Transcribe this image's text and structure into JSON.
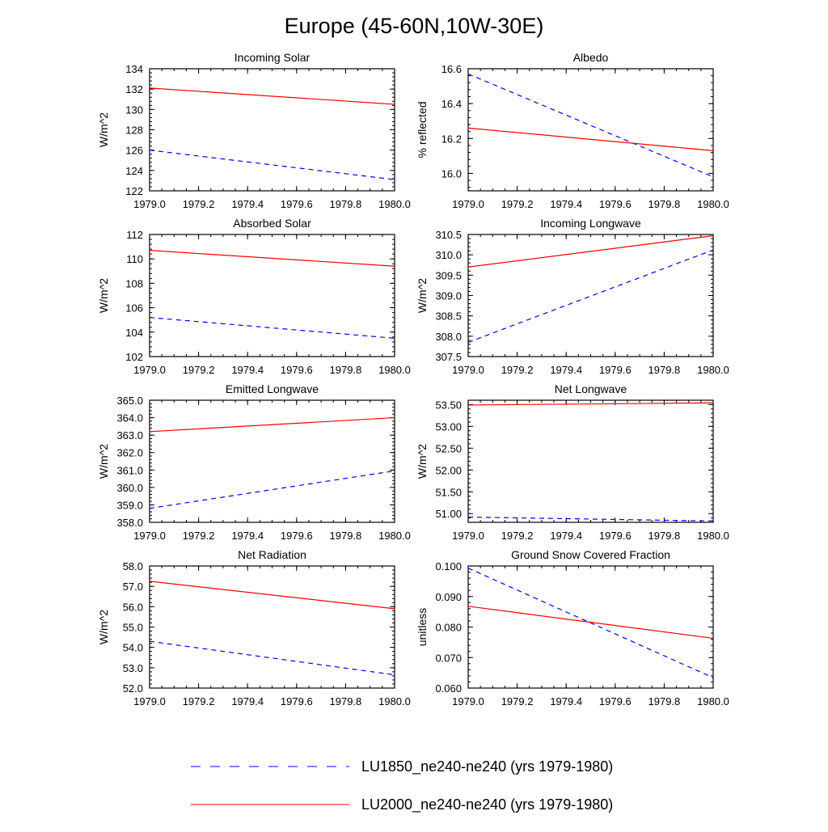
{
  "figure_title": "Europe (45-60N,10W-30E)",
  "colors": {
    "lu1850": "#0000ff",
    "lu2000": "#ff0000"
  },
  "chart_data": [
    {
      "type": "line",
      "title": "Incoming Solar",
      "ylabel": "W/m^2",
      "xlim": [
        1979.0,
        1980.0
      ],
      "xticks": [
        "1979.0",
        "1979.2",
        "1979.4",
        "1979.6",
        "1979.8",
        "1980.0"
      ],
      "ylim": [
        122,
        134
      ],
      "yticks": [
        "122",
        "124",
        "126",
        "128",
        "130",
        "132",
        "134"
      ],
      "x": [
        1979.0,
        1980.0
      ],
      "series": [
        {
          "name": "LU1850_ne240-ne240 (yrs 1979-1980)",
          "values": [
            126.0,
            123.1
          ]
        },
        {
          "name": "LU2000_ne240-ne240 (yrs 1979-1980)",
          "values": [
            132.1,
            130.5
          ]
        }
      ]
    },
    {
      "type": "line",
      "title": "Albedo",
      "ylabel": "% reflected",
      "xlim": [
        1979.0,
        1980.0
      ],
      "xticks": [
        "1979.0",
        "1979.2",
        "1979.4",
        "1979.6",
        "1979.8",
        "1980.0"
      ],
      "ylim": [
        15.9,
        16.6
      ],
      "yticks": [
        "16.0",
        "16.2",
        "16.4",
        "16.6"
      ],
      "x": [
        1979.0,
        1980.0
      ],
      "series": [
        {
          "name": "LU1850_ne240-ne240 (yrs 1979-1980)",
          "values": [
            16.57,
            15.98
          ]
        },
        {
          "name": "LU2000_ne240-ne240 (yrs 1979-1980)",
          "values": [
            16.26,
            16.13
          ]
        }
      ]
    },
    {
      "type": "line",
      "title": "Absorbed Solar",
      "ylabel": "W/m^2",
      "xlim": [
        1979.0,
        1980.0
      ],
      "xticks": [
        "1979.0",
        "1979.2",
        "1979.4",
        "1979.6",
        "1979.8",
        "1980.0"
      ],
      "ylim": [
        102,
        112
      ],
      "yticks": [
        "102",
        "104",
        "106",
        "108",
        "110",
        "112"
      ],
      "x": [
        1979.0,
        1980.0
      ],
      "series": [
        {
          "name": "LU1850_ne240-ne240 (yrs 1979-1980)",
          "values": [
            105.2,
            103.5
          ]
        },
        {
          "name": "LU2000_ne240-ne240 (yrs 1979-1980)",
          "values": [
            110.7,
            109.4
          ]
        }
      ]
    },
    {
      "type": "line",
      "title": "Incoming Longwave",
      "ylabel": "W/m^2",
      "xlim": [
        1979.0,
        1980.0
      ],
      "xticks": [
        "1979.0",
        "1979.2",
        "1979.4",
        "1979.6",
        "1979.8",
        "1980.0"
      ],
      "ylim": [
        307.5,
        310.5
      ],
      "yticks": [
        "307.5",
        "308.0",
        "308.5",
        "309.0",
        "309.5",
        "310.0",
        "310.5"
      ],
      "x": [
        1979.0,
        1980.0
      ],
      "series": [
        {
          "name": "LU1850_ne240-ne240 (yrs 1979-1980)",
          "values": [
            307.85,
            310.12
          ]
        },
        {
          "name": "LU2000_ne240-ne240 (yrs 1979-1980)",
          "values": [
            309.7,
            310.47
          ]
        }
      ]
    },
    {
      "type": "line",
      "title": "Emitted Longwave",
      "ylabel": "W/m^2",
      "xlim": [
        1979.0,
        1980.0
      ],
      "xticks": [
        "1979.0",
        "1979.2",
        "1979.4",
        "1979.6",
        "1979.8",
        "1980.0"
      ],
      "ylim": [
        358.0,
        365.0
      ],
      "yticks": [
        "358.0",
        "359.0",
        "360.0",
        "361.0",
        "362.0",
        "363.0",
        "364.0",
        "365.0"
      ],
      "x": [
        1979.0,
        1980.0
      ],
      "series": [
        {
          "name": "LU1850_ne240-ne240 (yrs 1979-1980)",
          "values": [
            358.8,
            360.95
          ]
        },
        {
          "name": "LU2000_ne240-ne240 (yrs 1979-1980)",
          "values": [
            363.2,
            364.0
          ]
        }
      ]
    },
    {
      "type": "line",
      "title": "Net Longwave",
      "ylabel": "W/m^2",
      "xlim": [
        1979.0,
        1980.0
      ],
      "xticks": [
        "1979.0",
        "1979.2",
        "1979.4",
        "1979.6",
        "1979.8",
        "1980.0"
      ],
      "ylim": [
        50.8,
        53.6
      ],
      "yticks": [
        "51.00",
        "51.50",
        "52.00",
        "52.50",
        "53.00",
        "53.50"
      ],
      "x": [
        1979.0,
        1980.0
      ],
      "series": [
        {
          "name": "LU1850_ne240-ne240 (yrs 1979-1980)",
          "values": [
            50.92,
            50.83
          ]
        },
        {
          "name": "LU2000_ne240-ne240 (yrs 1979-1980)",
          "values": [
            53.49,
            53.54
          ]
        }
      ]
    },
    {
      "type": "line",
      "title": "Net Radiation",
      "ylabel": "W/m^2",
      "xlim": [
        1979.0,
        1980.0
      ],
      "xticks": [
        "1979.0",
        "1979.2",
        "1979.4",
        "1979.6",
        "1979.8",
        "1980.0"
      ],
      "ylim": [
        52.0,
        58.0
      ],
      "yticks": [
        "52.0",
        "53.0",
        "54.0",
        "55.0",
        "56.0",
        "57.0",
        "58.0"
      ],
      "x": [
        1979.0,
        1980.0
      ],
      "series": [
        {
          "name": "LU1850_ne240-ne240 (yrs 1979-1980)",
          "values": [
            54.3,
            52.65
          ]
        },
        {
          "name": "LU2000_ne240-ne240 (yrs 1979-1980)",
          "values": [
            57.25,
            55.9
          ]
        }
      ]
    },
    {
      "type": "line",
      "title": "Ground Snow Covered Fraction",
      "ylabel": "unitless",
      "xlim": [
        1979.0,
        1980.0
      ],
      "xticks": [
        "1979.0",
        "1979.2",
        "1979.4",
        "1979.6",
        "1979.8",
        "1980.0"
      ],
      "ylim": [
        0.06,
        0.1
      ],
      "yticks": [
        "0.060",
        "0.070",
        "0.080",
        "0.090",
        "0.100"
      ],
      "x": [
        1979.0,
        1980.0
      ],
      "series": [
        {
          "name": "LU1850_ne240-ne240 (yrs 1979-1980)",
          "values": [
            0.0993,
            0.0634
          ]
        },
        {
          "name": "LU2000_ne240-ne240 (yrs 1979-1980)",
          "values": [
            0.0868,
            0.0763
          ]
        }
      ]
    }
  ],
  "legend": {
    "placement": "bottom",
    "entries": [
      {
        "label": "LU1850_ne240-ne240 (yrs 1979-1980)",
        "style": "dashed",
        "color": "#0000ff"
      },
      {
        "label": "LU2000_ne240-ne240 (yrs 1979-1980)",
        "style": "solid",
        "color": "#ff0000"
      }
    ]
  }
}
